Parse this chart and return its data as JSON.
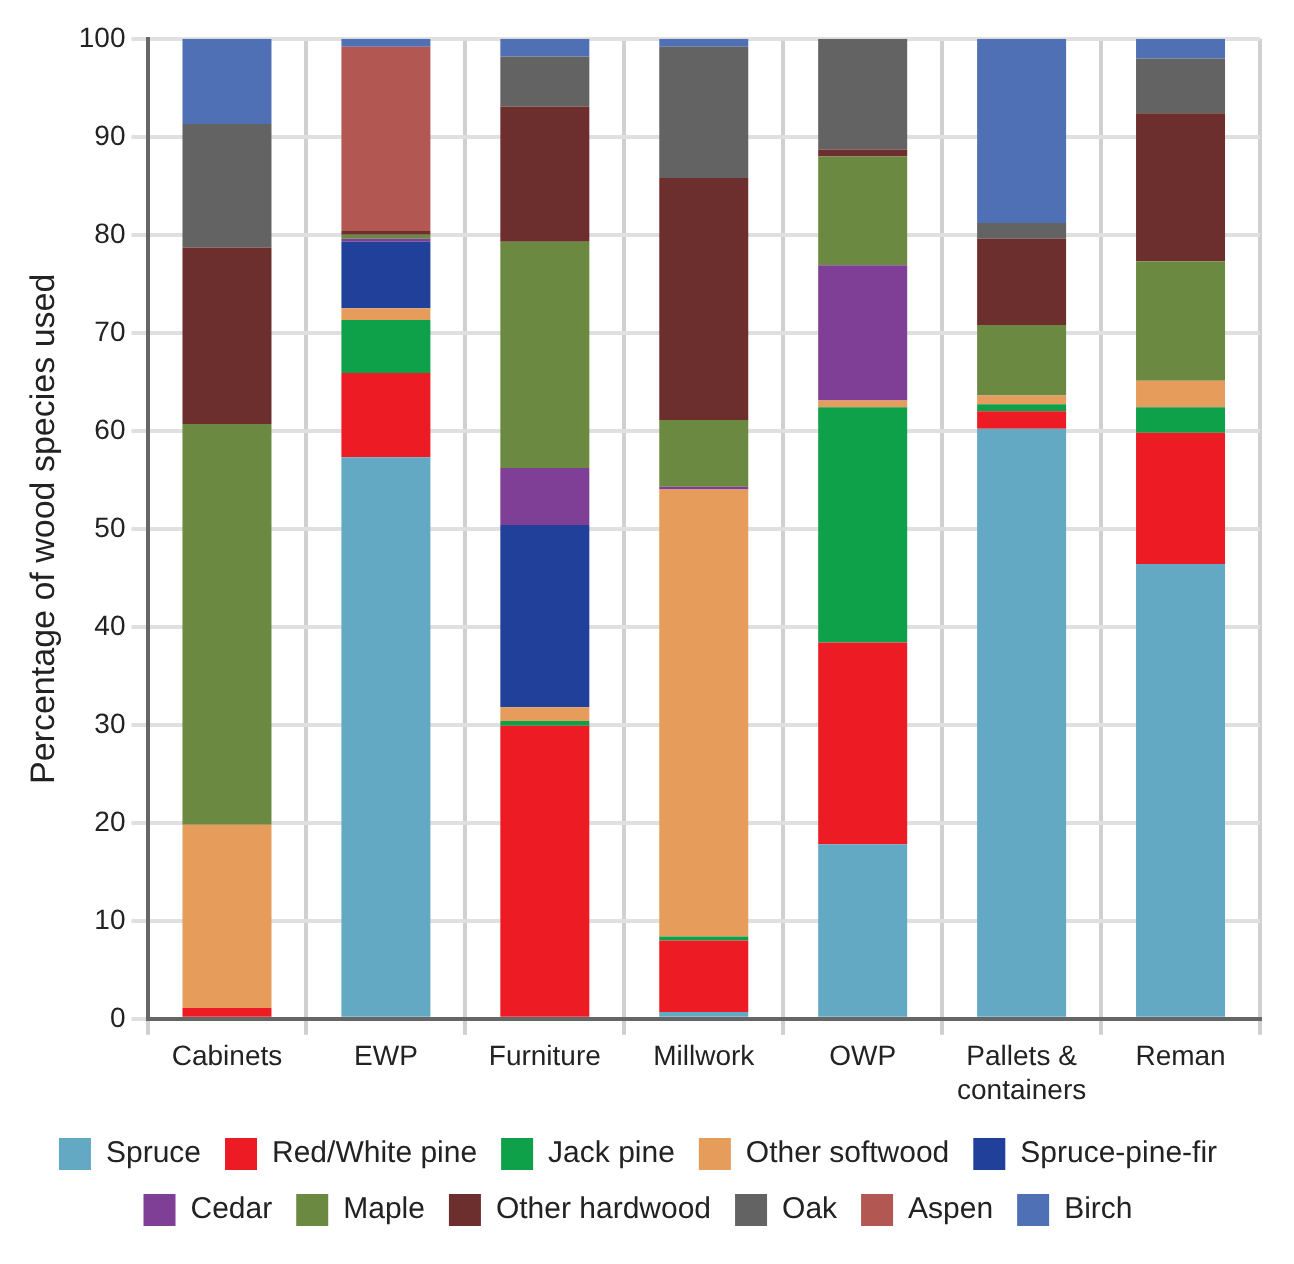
{
  "chart_data": {
    "type": "bar",
    "stacked": true,
    "ylabel": "Percentage of wood species used",
    "categories": [
      "Cabinets",
      "EWP",
      "Furniture",
      "Millwork",
      "OWP",
      "Pallets & containers",
      "Reman"
    ],
    "ylim": [
      0,
      100
    ],
    "yticks": [
      0,
      10,
      20,
      30,
      40,
      50,
      60,
      70,
      80,
      90,
      100
    ],
    "grid": true,
    "legend": "bottom",
    "series": [
      {
        "name": "Spruce",
        "color": "#63a9c3",
        "values": [
          0,
          57.3,
          0,
          0.7,
          17.8,
          60.2,
          46.4
        ]
      },
      {
        "name": "Red/White pine",
        "color": "#ed1c24",
        "values": [
          1.1,
          8.6,
          29.9,
          7.3,
          20.6,
          1.8,
          13.4
        ]
      },
      {
        "name": "Jack pine",
        "color": "#0fa04a",
        "values": [
          0,
          5.4,
          0.5,
          0.4,
          24.0,
          0.7,
          2.6
        ]
      },
      {
        "name": "Other softwood",
        "color": "#e69c5a",
        "values": [
          18.7,
          1.2,
          1.4,
          45.6,
          0.7,
          0.9,
          2.7
        ]
      },
      {
        "name": "Spruce-pine-fir",
        "color": "#21409a",
        "values": [
          0,
          6.8,
          18.6,
          0,
          0,
          0,
          0
        ]
      },
      {
        "name": "Cedar",
        "color": "#7f3f97",
        "values": [
          0,
          0.3,
          5.8,
          0.3,
          13.8,
          0,
          0
        ]
      },
      {
        "name": "Maple",
        "color": "#6c8941",
        "values": [
          40.9,
          0.4,
          23.1,
          6.8,
          11.1,
          7.2,
          12.2
        ]
      },
      {
        "name": "Other hardwood",
        "color": "#6d2f2e",
        "values": [
          18.0,
          0.4,
          13.8,
          24.7,
          0.7,
          8.8,
          15.1
        ]
      },
      {
        "name": "Oak",
        "color": "#636363",
        "values": [
          12.6,
          0,
          5.1,
          13.4,
          11.3,
          1.6,
          5.6
        ]
      },
      {
        "name": "Aspen",
        "color": "#b35752",
        "values": [
          0,
          18.8,
          0,
          0,
          0,
          0,
          0
        ]
      },
      {
        "name": "Birch",
        "color": "#5070b5",
        "values": [
          8.7,
          0.8,
          1.8,
          0.8,
          0,
          18.8,
          2.0
        ]
      }
    ]
  }
}
